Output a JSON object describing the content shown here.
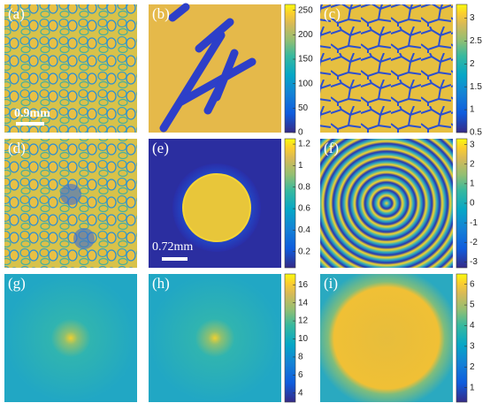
{
  "panels": [
    {
      "label": "(a)",
      "scale_bar": "0.9mm"
    },
    {
      "label": "(b)"
    },
    {
      "label": "(c)"
    },
    {
      "label": "(d)"
    },
    {
      "label": "(e)",
      "scale_bar": "0.72mm"
    },
    {
      "label": "(f)"
    },
    {
      "label": "(g)"
    },
    {
      "label": "(h)"
    },
    {
      "label": "(i)"
    }
  ],
  "colorbars": [
    {
      "ylim": [
        0,
        262
      ],
      "yticks": [
        0,
        50,
        100,
        150,
        200,
        250
      ]
    },
    {
      "ylim": [
        0.5,
        3.3
      ],
      "yticks": [
        0.5,
        1,
        1.5,
        2,
        2.5,
        3
      ]
    },
    {
      "ylim": [
        0.05,
        1.25
      ],
      "yticks": [
        0.2,
        0.4,
        0.6,
        0.8,
        1,
        1.2
      ]
    },
    {
      "ylim": [
        -3.3,
        3.3
      ],
      "yticks": [
        -3,
        -2,
        -1,
        0,
        1,
        2,
        3
      ]
    },
    {
      "ylim": [
        3,
        17.2
      ],
      "yticks": [
        4,
        6,
        8,
        10,
        12,
        14,
        16
      ]
    },
    {
      "ylim": [
        0.3,
        6.5
      ],
      "yticks": [
        1,
        2,
        3,
        4,
        5,
        6
      ]
    }
  ]
}
